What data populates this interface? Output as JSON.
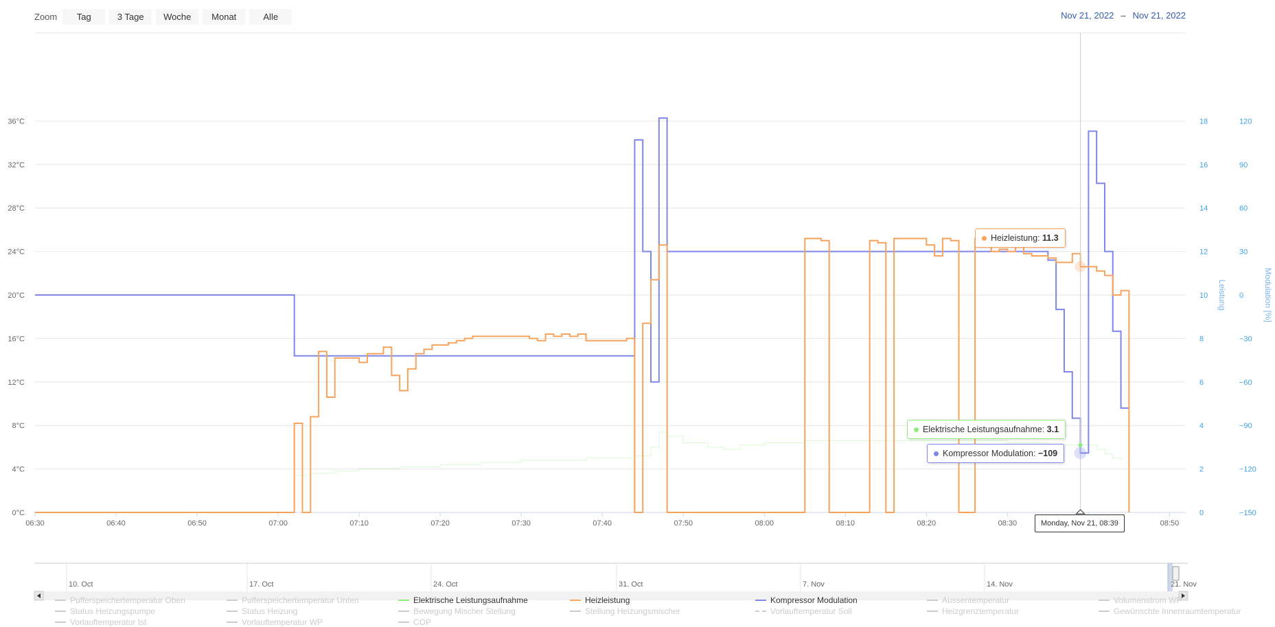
{
  "toolbar": {
    "zoom_label": "Zoom",
    "buttons": [
      "Tag",
      "3 Tage",
      "Woche",
      "Monat",
      "Alle"
    ],
    "range_from": "Nov 21, 2022",
    "range_sep": "–",
    "range_to": "Nov 21, 2022"
  },
  "chart_data": {
    "type": "line",
    "x_axis": {
      "unit": "time",
      "range": [
        "06:30",
        "08:52"
      ],
      "ticks": [
        "06:30",
        "06:40",
        "06:50",
        "07:00",
        "07:10",
        "07:20",
        "07:30",
        "07:40",
        "07:50",
        "08:00",
        "08:10",
        "08:20",
        "08:30",
        "08:40",
        "08:50"
      ]
    },
    "y_axes": [
      {
        "id": "temp",
        "side": "left",
        "title": "",
        "range": [
          0,
          40
        ],
        "ticks": [
          "0°C",
          "4°C",
          "8°C",
          "12°C",
          "16°C",
          "20°C",
          "24°C",
          "28°C",
          "32°C",
          "36°C"
        ]
      },
      {
        "id": "leistung",
        "side": "right",
        "title": "Leistung",
        "range": [
          0,
          20
        ],
        "ticks": [
          "0",
          "2",
          "4",
          "6",
          "8",
          "10",
          "12",
          "14",
          "16",
          "18"
        ]
      },
      {
        "id": "modulation",
        "side": "right",
        "title": "Modulation [%]",
        "range": [
          -150,
          150
        ],
        "ticks": [
          "−150",
          "−120",
          "−90",
          "−60",
          "−30",
          "0",
          "30",
          "60",
          "90",
          "120"
        ]
      }
    ],
    "series": [
      {
        "name": "Heizleistung",
        "axis": "leistung",
        "color": "#f7a35c",
        "step": true,
        "points": [
          [
            "06:30",
            0
          ],
          [
            "07:02",
            4.1
          ],
          [
            "07:03",
            0
          ],
          [
            "07:04",
            4.4
          ],
          [
            "07:05",
            7.4
          ],
          [
            "07:06",
            5.3
          ],
          [
            "07:07",
            7.1
          ],
          [
            "07:10",
            6.9
          ],
          [
            "07:11",
            7.3
          ],
          [
            "07:13",
            7.6
          ],
          [
            "07:14",
            6.3
          ],
          [
            "07:15",
            5.6
          ],
          [
            "07:16",
            6.6
          ],
          [
            "07:17",
            7.3
          ],
          [
            "07:18",
            7.5
          ],
          [
            "07:19",
            7.7
          ],
          [
            "07:21",
            7.8
          ],
          [
            "07:22",
            7.9
          ],
          [
            "07:23",
            8.0
          ],
          [
            "07:24",
            8.1
          ],
          [
            "07:31",
            8.0
          ],
          [
            "07:32",
            7.9
          ],
          [
            "07:33",
            8.2
          ],
          [
            "07:34",
            8.1
          ],
          [
            "07:35",
            8.2
          ],
          [
            "07:36",
            8.1
          ],
          [
            "07:37",
            8.2
          ],
          [
            "07:38",
            7.9
          ],
          [
            "07:43",
            8.0
          ],
          [
            "07:44",
            0
          ],
          [
            "07:45",
            8.7
          ],
          [
            "07:46",
            10.7
          ],
          [
            "07:47",
            12.3
          ],
          [
            "07:48",
            0
          ],
          [
            "08:05",
            12.6
          ],
          [
            "08:07",
            12.5
          ],
          [
            "08:08",
            0
          ],
          [
            "08:13",
            12.5
          ],
          [
            "08:14",
            12.4
          ],
          [
            "08:15",
            0
          ],
          [
            "08:16",
            12.6
          ],
          [
            "08:20",
            12.3
          ],
          [
            "08:21",
            11.8
          ],
          [
            "08:22",
            12.6
          ],
          [
            "08:23",
            12.5
          ],
          [
            "08:24",
            0
          ],
          [
            "08:26",
            12.6
          ],
          [
            "08:27",
            12.4
          ],
          [
            "08:28",
            12.0
          ],
          [
            "08:29",
            12.1
          ],
          [
            "08:30",
            12.0
          ],
          [
            "08:31",
            12.2
          ],
          [
            "08:32",
            11.9
          ],
          [
            "08:33",
            11.8
          ],
          [
            "08:35",
            11.7
          ],
          [
            "08:36",
            11.5
          ],
          [
            "08:38",
            11.9
          ],
          [
            "08:39",
            11.3
          ],
          [
            "08:41",
            11.1
          ],
          [
            "08:42",
            10.9
          ],
          [
            "08:43",
            10.0
          ],
          [
            "08:44",
            10.2
          ],
          [
            "08:45",
            0
          ]
        ]
      },
      {
        "name": "Kompressor Modulation",
        "axis": "modulation",
        "color": "#8085e9",
        "step": true,
        "points": [
          [
            "06:30",
            0
          ],
          [
            "07:02",
            -42
          ],
          [
            "07:44",
            107
          ],
          [
            "07:45",
            30
          ],
          [
            "07:46",
            -60
          ],
          [
            "07:47",
            122
          ],
          [
            "07:48",
            30
          ],
          [
            "08:35",
            24
          ],
          [
            "08:36",
            -10
          ],
          [
            "08:37",
            -53
          ],
          [
            "08:38",
            -85
          ],
          [
            "08:39",
            -109
          ],
          [
            "08:40",
            113
          ],
          [
            "08:41",
            77
          ],
          [
            "08:42",
            30
          ],
          [
            "08:43",
            -25
          ],
          [
            "08:44",
            -78
          ],
          [
            "08:45",
            -78
          ]
        ]
      },
      {
        "name": "Elektrische Leistungsaufnahme",
        "axis": "leistung",
        "color": "#90ed7d",
        "step": true,
        "dimmed": true,
        "points": [
          [
            "07:02",
            1.7
          ],
          [
            "07:04",
            1.8
          ],
          [
            "07:07",
            1.9
          ],
          [
            "07:10",
            2.0
          ],
          [
            "07:15",
            2.1
          ],
          [
            "07:20",
            2.2
          ],
          [
            "07:25",
            2.3
          ],
          [
            "07:30",
            2.4
          ],
          [
            "07:38",
            2.5
          ],
          [
            "07:44",
            2.6
          ],
          [
            "07:46",
            3.0
          ],
          [
            "07:47",
            3.7
          ],
          [
            "07:48",
            3.5
          ],
          [
            "07:50",
            3.2
          ],
          [
            "07:53",
            3.0
          ],
          [
            "07:55",
            2.9
          ],
          [
            "07:57",
            3.1
          ],
          [
            "08:00",
            3.2
          ],
          [
            "08:05",
            3.3
          ],
          [
            "08:20",
            3.3
          ],
          [
            "08:30",
            3.2
          ],
          [
            "08:35",
            3.1
          ],
          [
            "08:39",
            3.1
          ],
          [
            "08:41",
            2.9
          ],
          [
            "08:42",
            2.7
          ],
          [
            "08:43",
            2.5
          ],
          [
            "08:44",
            2.4
          ]
        ]
      }
    ],
    "crosshair_x": "08:39",
    "tooltips": [
      {
        "series": "Heizleistung",
        "value": "11.3"
      },
      {
        "series": "Elektrische Leistungsaufnahme",
        "value": "3.1"
      },
      {
        "series": "Kompressor Modulation",
        "value": "−109"
      }
    ],
    "crosshair_label": "Monday, Nov 21, 08:39",
    "grid": true,
    "legend_position": "bottom"
  },
  "tooltips": {
    "heiz": {
      "label": "Heizleistung",
      "value": "11.3",
      "color": "#f7a35c"
    },
    "elek": {
      "label": "Elektrische Leistungsaufnahme",
      "value": "3.1",
      "color": "#90ed7d"
    },
    "komp": {
      "label": "Kompressor Modulation",
      "value": "−109",
      "color": "#8085e9"
    },
    "time": "Monday, Nov 21, 08:39"
  },
  "navigator": {
    "ticks": [
      "10. Oct",
      "17. Oct",
      "24. Oct",
      "31. Oct",
      "7. Nov",
      "14. Nov",
      "21. Nov"
    ]
  },
  "legend": [
    {
      "label": "Pufferspeichertemperatur Oben",
      "active": false,
      "dashed": false
    },
    {
      "label": "Pufferspeichertemperatur Unten",
      "active": false,
      "dashed": false
    },
    {
      "label": "Elektrische Leistungsaufnahme",
      "active": true,
      "dashed": false,
      "color": "#90ed7d"
    },
    {
      "label": "Heizleistung",
      "active": true,
      "dashed": false,
      "color": "#f7a35c"
    },
    {
      "label": "Kompressor Modulation",
      "active": true,
      "dashed": false,
      "color": "#8085e9"
    },
    {
      "label": "Aussentemperatur",
      "active": false,
      "dashed": false
    },
    {
      "label": "Volumenstrom WP",
      "active": false,
      "dashed": false
    },
    {
      "label": "Status Heizungspumpe",
      "active": false,
      "dashed": false
    },
    {
      "label": "Status Heizung",
      "active": false,
      "dashed": false
    },
    {
      "label": "Bewegung Mischer Stellung",
      "active": false,
      "dashed": false
    },
    {
      "label": "Stellung Heizungsmischer",
      "active": false,
      "dashed": false
    },
    {
      "label": "Vorlauftemperatur Soll",
      "active": false,
      "dashed": true
    },
    {
      "label": "Heizgrenztemperatur",
      "active": false,
      "dashed": false
    },
    {
      "label": "Gewünschte Innenraumtemperatur",
      "active": false,
      "dashed": false
    },
    {
      "label": "Vorlauftemperatur Ist",
      "active": false,
      "dashed": false
    },
    {
      "label": "Vorlauftemperatur WP",
      "active": false,
      "dashed": false
    },
    {
      "label": "COP",
      "active": false,
      "dashed": false
    }
  ]
}
